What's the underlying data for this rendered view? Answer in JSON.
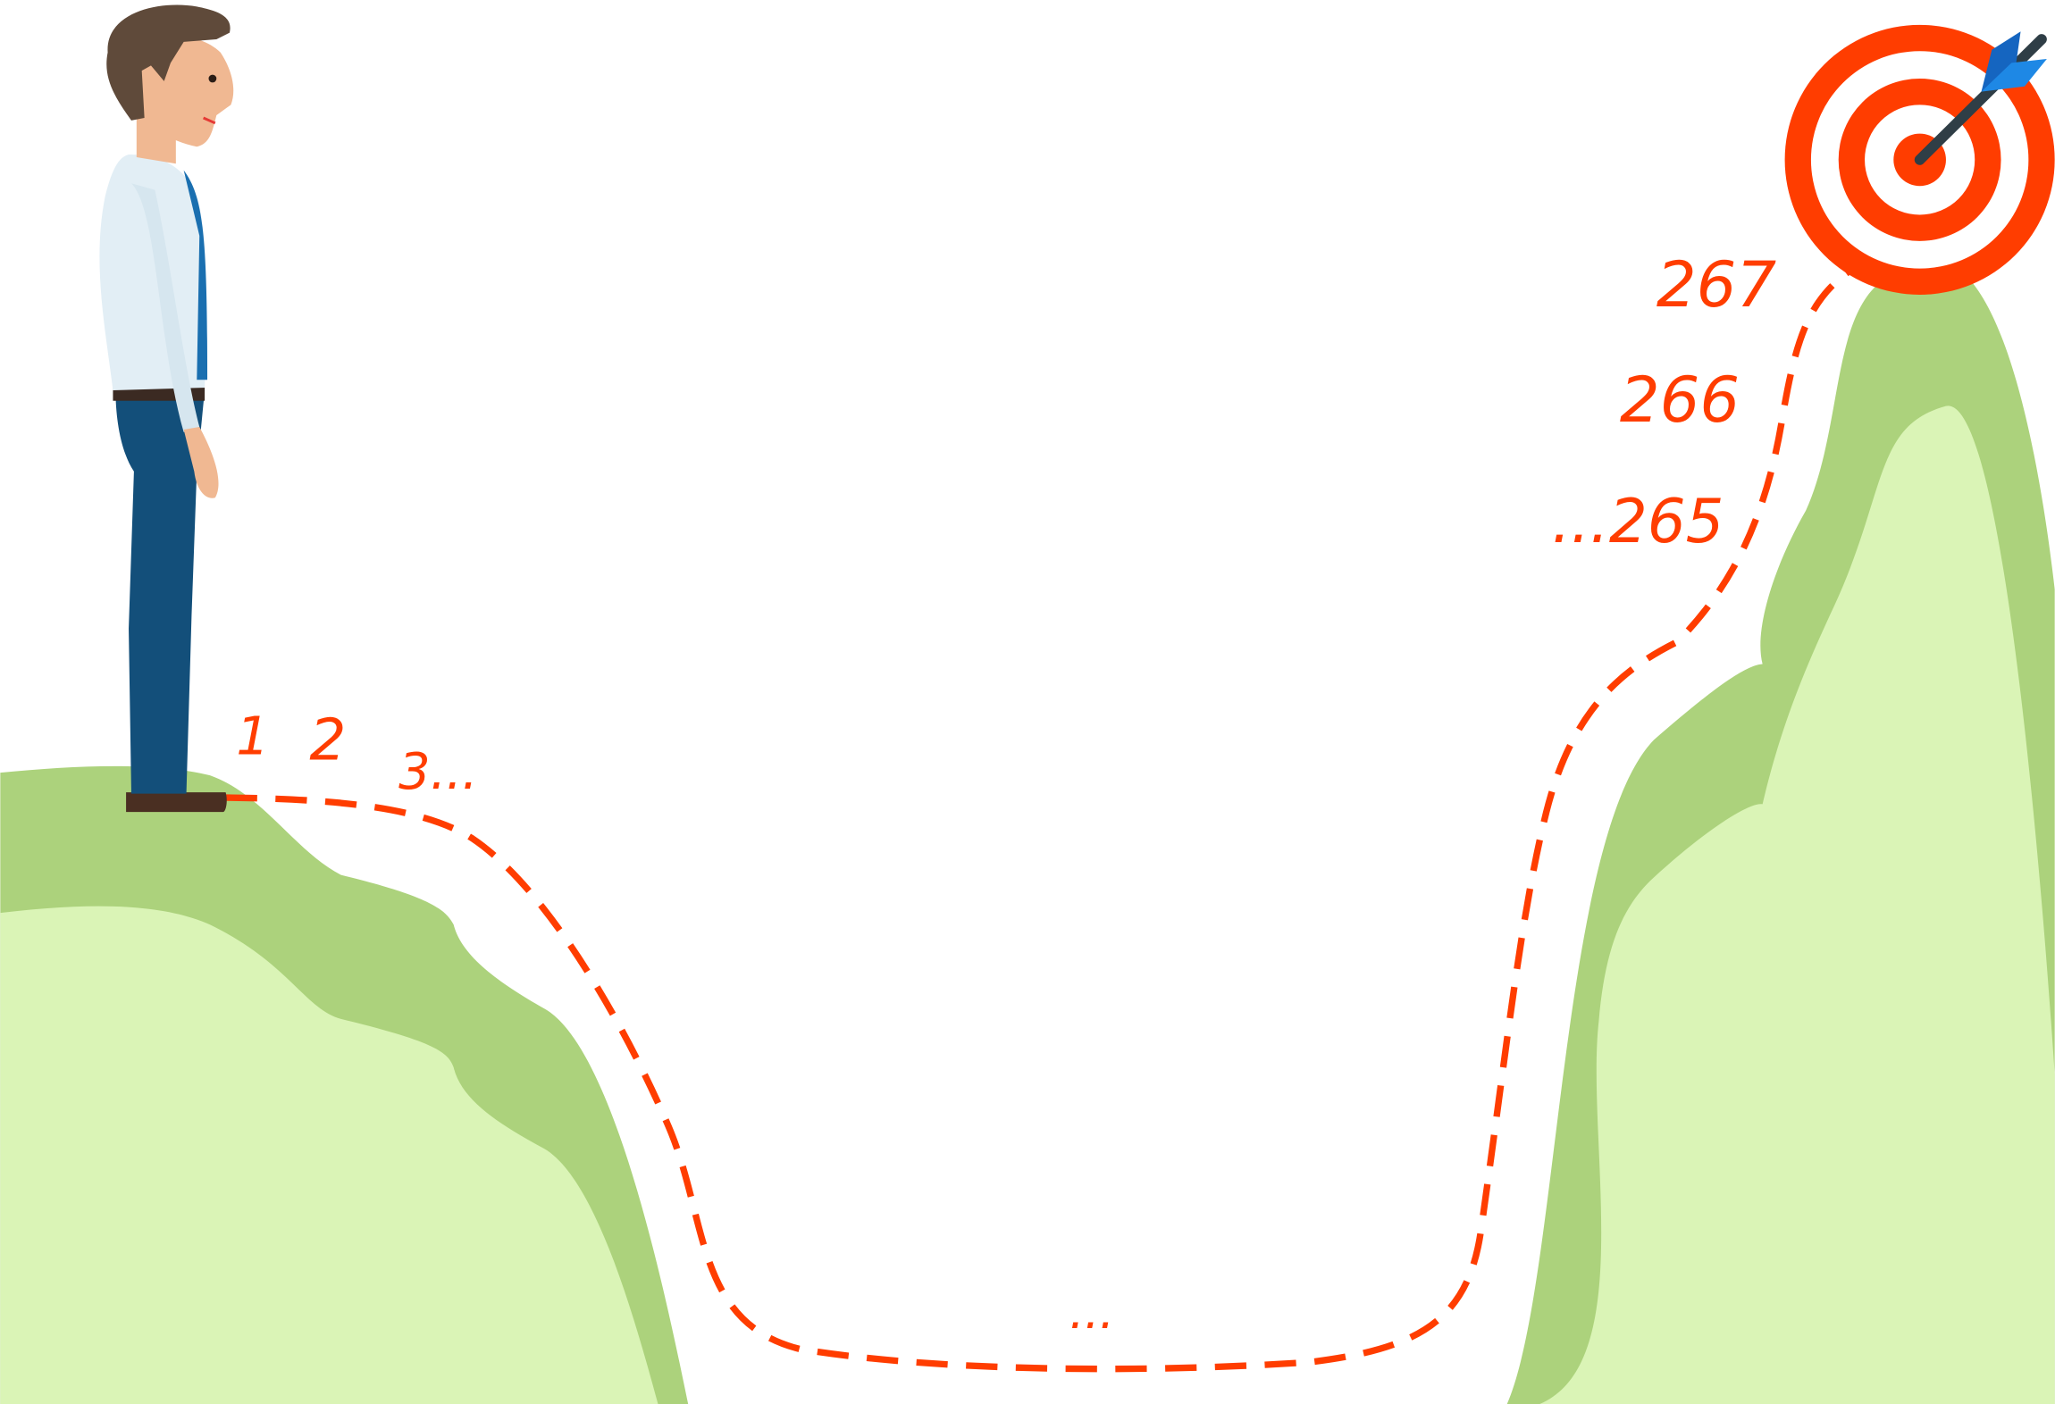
{
  "labels": {
    "step_1": "1",
    "step_2": "2",
    "step_3": "3...",
    "valley": "...",
    "step_265": "...265",
    "step_266": "266",
    "step_267": "267"
  },
  "colors": {
    "hill_dark": "#acd27c",
    "hill_light": "#daf4b6",
    "path_red": "#ff3d00",
    "target_red": "#ff3d00",
    "dart_blue": "#1e88e5",
    "shirt": "#e2eef5",
    "pants": "#134f7a",
    "hair": "#5f4a3a",
    "skin": "#f0b892"
  },
  "icons": {
    "target": "bullseye-target-icon",
    "dart": "dart-icon",
    "person": "businessman-figure"
  }
}
